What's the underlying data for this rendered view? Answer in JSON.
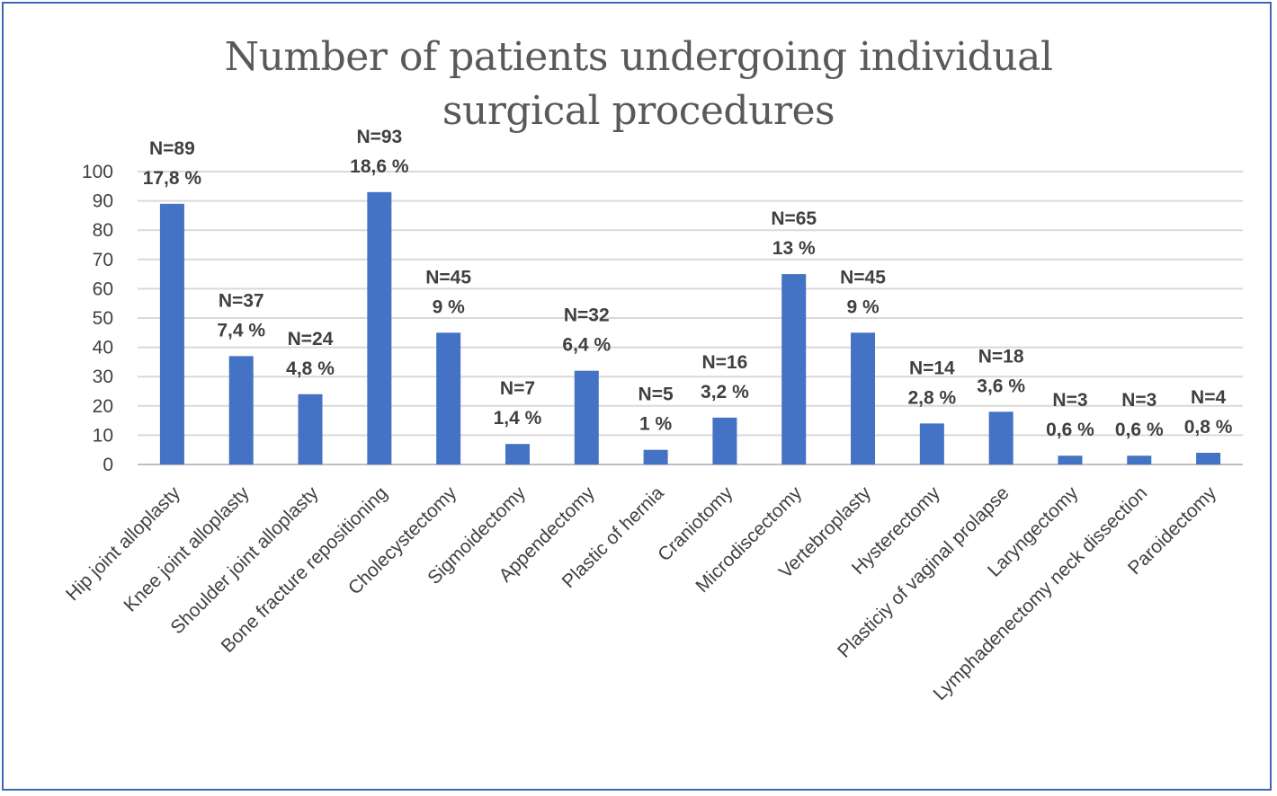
{
  "chart_data": {
    "type": "bar",
    "title": "Number of patients undergoing individual surgical procedures",
    "xlabel": "",
    "ylabel": "",
    "ylim": [
      0,
      100
    ],
    "yticks": [
      "0",
      "10",
      "20",
      "30",
      "40",
      "50",
      "60",
      "70",
      "80",
      "90",
      "100"
    ],
    "grid": true,
    "bar_color": "#4472c4",
    "categories": [
      "Hip joint alloplasty",
      "Knee joint alloplasty",
      "Shoulder joint alloplasty",
      "Bone fracture repositioning",
      "Cholecystectomy",
      "Sigmoidectomy",
      "Appendectomy",
      "Plastic of hernia",
      "Craniotomy",
      "Microdiscectomy",
      "Vertebroplasty",
      "Hysterectomy",
      "Plasticiy of vaginal prolapse",
      "Laryngectomy",
      "Lymphadenectomy neck dissection",
      "Paroidectomy"
    ],
    "values": [
      89,
      37,
      24,
      93,
      45,
      7,
      32,
      5,
      16,
      65,
      45,
      14,
      18,
      3,
      3,
      4
    ],
    "data_labels": [
      [
        "N=89",
        "17,8 %"
      ],
      [
        "N=37",
        "7,4 %"
      ],
      [
        "N=24",
        "4,8 %"
      ],
      [
        "N=93",
        "18,6 %"
      ],
      [
        "N=45",
        "9 %"
      ],
      [
        "N=7",
        "1,4 %"
      ],
      [
        "N=32",
        "6,4 %"
      ],
      [
        "N=5",
        "1 %"
      ],
      [
        "N=16",
        "3,2 %"
      ],
      [
        "N=65",
        "13 %"
      ],
      [
        "N=45",
        "9 %"
      ],
      [
        "N=14",
        "2,8 %"
      ],
      [
        "N=18",
        "3,6 %"
      ],
      [
        "N=3",
        "0,6 %"
      ],
      [
        "N=3",
        "0,6 %"
      ],
      [
        "N=4",
        "0,8 %"
      ]
    ]
  }
}
